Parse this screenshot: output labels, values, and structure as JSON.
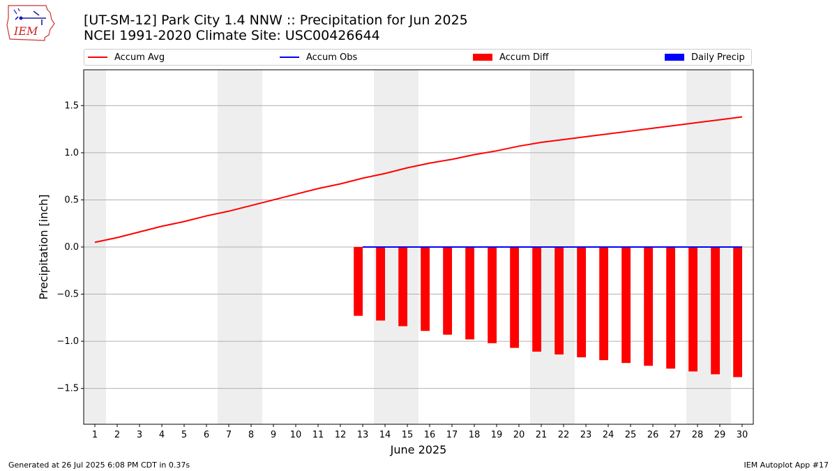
{
  "title": {
    "line1": "[UT-SM-12] Park City 1.4 NNW :: Precipitation for Jun 2025",
    "line2": "NCEI 1991-2020 Climate Site: USC00426644"
  },
  "logo": {
    "text": "IEM",
    "icon": "iem-iowa-map-logo"
  },
  "legend": [
    {
      "label": "Accum Avg",
      "kind": "line",
      "color": "#ff0000"
    },
    {
      "label": "Accum Obs",
      "kind": "line",
      "color": "#0000ff"
    },
    {
      "label": "Accum Diff",
      "kind": "bar",
      "color": "#ff0000"
    },
    {
      "label": "Daily Precip",
      "kind": "bar",
      "color": "#0000ff"
    }
  ],
  "footer": {
    "left": "Generated at 26 Jul 2025 6:08 PM CDT in 0.37s",
    "right": "IEM Autoplot App #17"
  },
  "chart_data": {
    "type": "bar",
    "xlabel": "June 2025",
    "ylabel": "Precipitation [inch]",
    "xlim": [
      0.5,
      30.5
    ],
    "ylim": [
      -1.88,
      1.88
    ],
    "yticks": [
      -1.5,
      -1.0,
      -0.5,
      0.0,
      0.5,
      1.0,
      1.5
    ],
    "ytick_labels": [
      "−1.5",
      "−1.0",
      "−0.5",
      "0.0",
      "0.5",
      "1.0",
      "1.5"
    ],
    "x": [
      1,
      2,
      3,
      4,
      5,
      6,
      7,
      8,
      9,
      10,
      11,
      12,
      13,
      14,
      15,
      16,
      17,
      18,
      19,
      20,
      21,
      22,
      23,
      24,
      25,
      26,
      27,
      28,
      29,
      30
    ],
    "grid": "horizontal",
    "weekend_shading_days": [
      1,
      7,
      8,
      14,
      15,
      21,
      22,
      28,
      29
    ],
    "series": [
      {
        "name": "Accum Avg",
        "kind": "line",
        "color": "#ff0000",
        "x": [
          1,
          2,
          3,
          4,
          5,
          6,
          7,
          8,
          9,
          10,
          11,
          12,
          13,
          14,
          15,
          16,
          17,
          18,
          19,
          20,
          21,
          22,
          23,
          24,
          25,
          26,
          27,
          28,
          29,
          30
        ],
        "values": [
          0.05,
          0.1,
          0.16,
          0.22,
          0.27,
          0.33,
          0.38,
          0.44,
          0.5,
          0.56,
          0.62,
          0.67,
          0.73,
          0.78,
          0.84,
          0.89,
          0.93,
          0.98,
          1.02,
          1.07,
          1.11,
          1.14,
          1.17,
          1.2,
          1.23,
          1.26,
          1.29,
          1.32,
          1.35,
          1.38
        ]
      },
      {
        "name": "Accum Obs",
        "kind": "line",
        "color": "#0000ff",
        "x": [
          13,
          14,
          15,
          16,
          17,
          18,
          19,
          20,
          21,
          22,
          23,
          24,
          25,
          26,
          27,
          28,
          29,
          30
        ],
        "values": [
          0,
          0,
          0,
          0,
          0,
          0,
          0,
          0,
          0,
          0,
          0,
          0,
          0,
          0,
          0,
          0,
          0,
          0
        ]
      },
      {
        "name": "Accum Diff",
        "kind": "bar",
        "color": "#ff0000",
        "offset": -0.2,
        "x": [
          13,
          14,
          15,
          16,
          17,
          18,
          19,
          20,
          21,
          22,
          23,
          24,
          25,
          26,
          27,
          28,
          29,
          30
        ],
        "values": [
          -0.73,
          -0.78,
          -0.84,
          -0.89,
          -0.93,
          -0.98,
          -1.02,
          -1.07,
          -1.11,
          -1.14,
          -1.17,
          -1.2,
          -1.23,
          -1.26,
          -1.29,
          -1.32,
          -1.35,
          -1.38
        ]
      },
      {
        "name": "Daily Precip",
        "kind": "bar",
        "color": "#0000ff",
        "offset": 0.2,
        "x": [
          13,
          14,
          15,
          16,
          17,
          18,
          19,
          20,
          21,
          22,
          23,
          24,
          25,
          26,
          27,
          28,
          29,
          30
        ],
        "values": [
          0,
          0,
          0,
          0,
          0,
          0,
          0,
          0,
          0,
          0,
          0,
          0,
          0,
          0,
          0,
          0,
          0,
          0
        ]
      }
    ]
  }
}
